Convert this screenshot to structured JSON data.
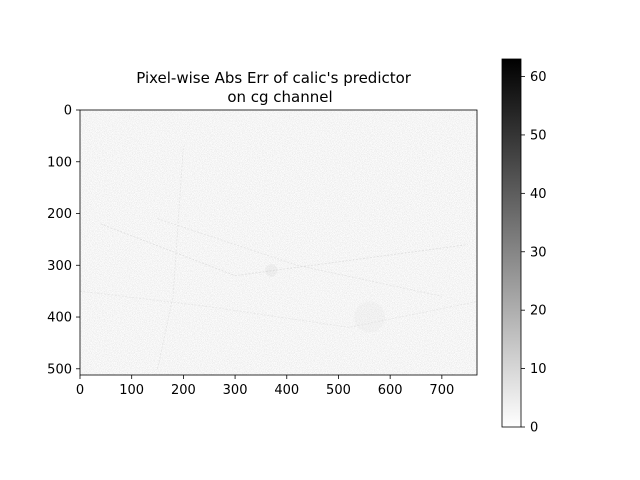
{
  "chart_data": {
    "type": "heatmap",
    "title": "Pixel-wise Abs Err of calic's predictor\non cg channel",
    "xlabel": "",
    "ylabel": "",
    "xlim": [
      0,
      768
    ],
    "ylim": [
      512,
      0
    ],
    "x_ticks": [
      0,
      100,
      200,
      300,
      400,
      500,
      600,
      700
    ],
    "y_ticks": [
      0,
      100,
      200,
      300,
      400,
      500
    ],
    "colormap": "gray_r",
    "value_range": [
      0,
      63
    ],
    "colorbar_ticks": [
      0,
      10,
      20,
      30,
      40,
      50,
      60
    ],
    "description_features": [
      {
        "kind": "line",
        "points": [
          [
            150,
            500
          ],
          [
            180,
            360
          ],
          [
            200,
            70
          ]
        ],
        "level": 10
      },
      {
        "kind": "line",
        "points": [
          [
            40,
            220
          ],
          [
            300,
            320
          ],
          [
            750,
            260
          ]
        ],
        "level": 12
      },
      {
        "kind": "line",
        "points": [
          [
            150,
            210
          ],
          [
            420,
            300
          ],
          [
            700,
            360
          ]
        ],
        "level": 10
      },
      {
        "kind": "line",
        "points": [
          [
            0,
            350
          ],
          [
            250,
            380
          ],
          [
            520,
            420
          ],
          [
            768,
            370
          ]
        ],
        "level": 9
      },
      {
        "kind": "blob",
        "center": [
          370,
          310
        ],
        "radius": 12,
        "level": 14
      },
      {
        "kind": "blob",
        "center": [
          560,
          400
        ],
        "radius": 30,
        "level": 8
      }
    ],
    "noise_level_mean": 3,
    "grid": false,
    "legend": "colorbar-right"
  },
  "colors": {
    "background": "#ffffff",
    "axis": "#000000",
    "low": "#ffffff",
    "high": "#000000"
  }
}
